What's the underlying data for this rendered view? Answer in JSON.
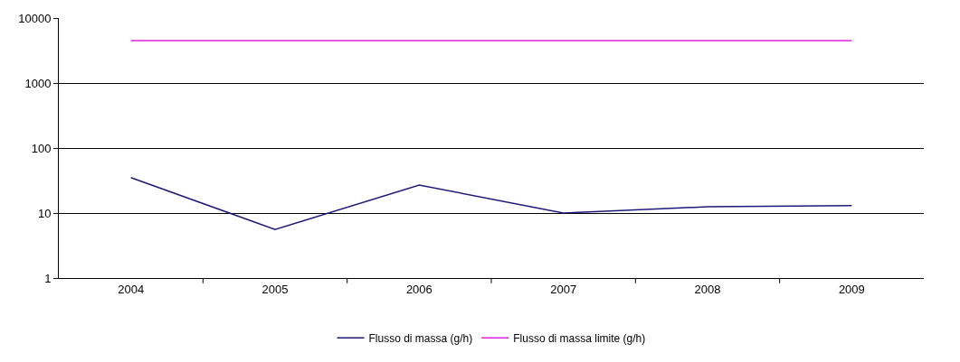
{
  "chart_data": {
    "type": "line",
    "categories": [
      "2004",
      "2005",
      "2006",
      "2007",
      "2008",
      "2009"
    ],
    "series": [
      {
        "name": "Flusso di massa (g/h)",
        "color": "#1f1a7a",
        "values": [
          35,
          5.6,
          27,
          10,
          12.5,
          13
        ]
      },
      {
        "name": "Flusso di massa limite (g/h)",
        "color": "#e020e0",
        "values": [
          4500,
          4500,
          4500,
          4500,
          4500,
          4500
        ]
      }
    ],
    "log": "y",
    "ylim": [
      1,
      10000
    ],
    "yticks": [
      1,
      10,
      100,
      1000,
      10000
    ],
    "grid": "y",
    "legend": "bottom",
    "marker": "none",
    "line_style": "solid"
  }
}
